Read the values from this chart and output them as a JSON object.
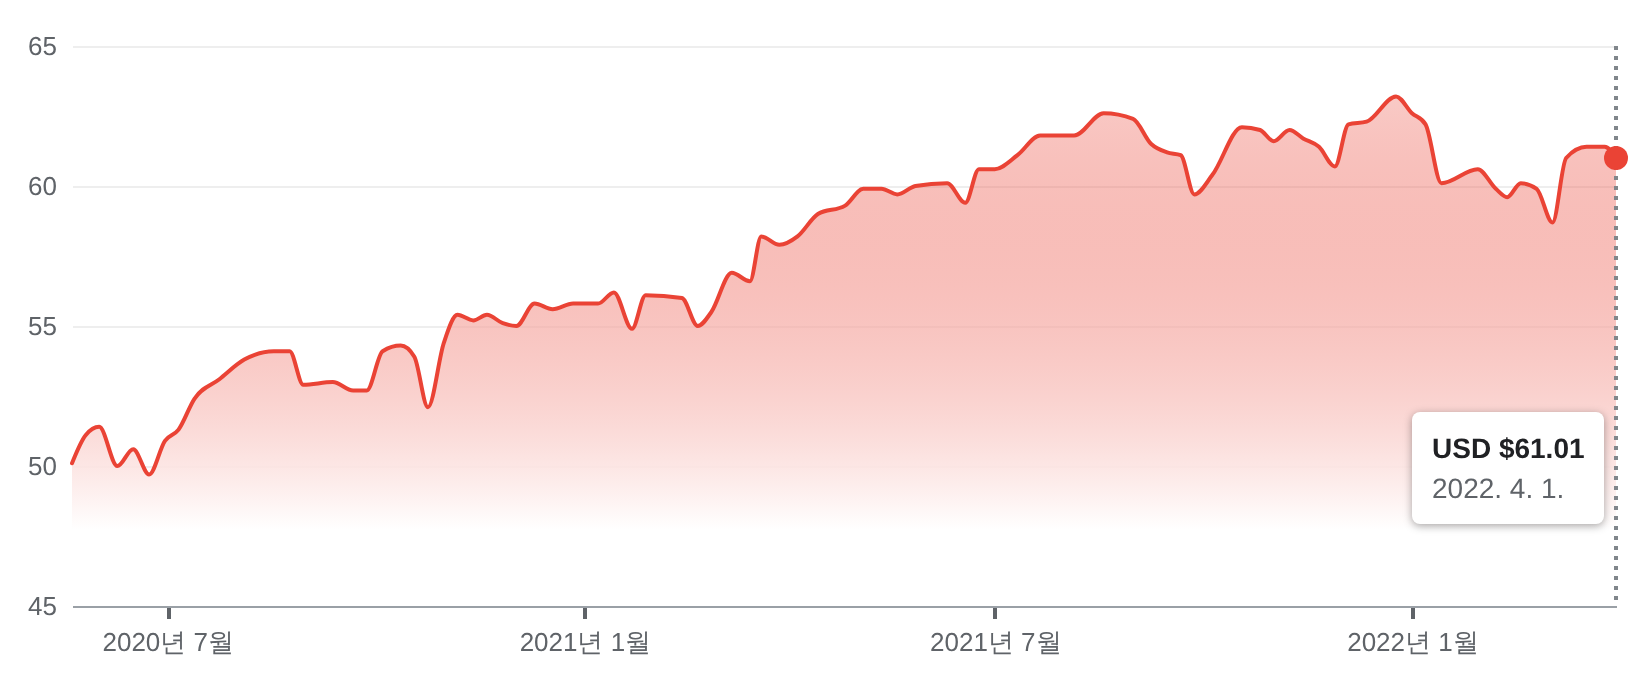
{
  "chart_data": {
    "type": "area",
    "xlim": [
      "2020-05-20",
      "2022-04-01"
    ],
    "ylim": [
      45,
      65
    ],
    "yticks": [
      45,
      50,
      55,
      60,
      65
    ],
    "xticks": [
      {
        "value": "2020-07-01",
        "label": "2020년 7월"
      },
      {
        "value": "2021-01-01",
        "label": "2021년 1월"
      },
      {
        "value": "2021-07-01",
        "label": "2021년 7월"
      },
      {
        "value": "2022-01-01",
        "label": "2022년 1월"
      }
    ],
    "grid": "y",
    "x": [
      "2020-05-20",
      "2020-05-26",
      "2020-06-01",
      "2020-06-09",
      "2020-06-16",
      "2020-06-23",
      "2020-06-30",
      "2020-07-06",
      "2020-07-13",
      "2020-07-24",
      "2020-08-04",
      "2020-08-17",
      "2020-08-24",
      "2020-08-30",
      "2020-09-12",
      "2020-09-21",
      "2020-09-27",
      "2020-10-04",
      "2020-10-12",
      "2020-10-18",
      "2020-10-24",
      "2020-10-31",
      "2020-11-06",
      "2020-11-13",
      "2020-11-19",
      "2020-11-26",
      "2020-12-02",
      "2020-12-10",
      "2020-12-18",
      "2020-12-27",
      "2021-01-07",
      "2021-01-14",
      "2021-01-22",
      "2021-01-28",
      "2021-02-13",
      "2021-02-20",
      "2021-02-26",
      "2021-03-07",
      "2021-03-15",
      "2021-03-20",
      "2021-03-28",
      "2021-04-05",
      "2021-04-14",
      "2021-04-26",
      "2021-05-04",
      "2021-05-12",
      "2021-05-19",
      "2021-05-27",
      "2021-06-10",
      "2021-06-18",
      "2021-06-24",
      "2021-07-01",
      "2021-07-11",
      "2021-07-21",
      "2021-08-05",
      "2021-08-18",
      "2021-08-31",
      "2021-09-08",
      "2021-09-15",
      "2021-09-21",
      "2021-09-27",
      "2021-10-05",
      "2021-10-18",
      "2021-10-26",
      "2021-11-01",
      "2021-11-08",
      "2021-11-14",
      "2021-11-21",
      "2021-11-28",
      "2021-12-04",
      "2021-12-12",
      "2021-12-25",
      "2022-01-01",
      "2022-01-07",
      "2022-01-14",
      "2022-01-30",
      "2022-02-07",
      "2022-02-12",
      "2022-02-18",
      "2022-02-25",
      "2022-03-04",
      "2022-03-10",
      "2022-03-19",
      "2022-03-27",
      "2022-04-01"
    ],
    "series": [
      {
        "color": "#ea4335",
        "values": [
          50.1,
          51.1,
          51.4,
          50.0,
          50.6,
          49.7,
          50.9,
          51.3,
          52.4,
          53.1,
          53.8,
          54.1,
          54.1,
          52.9,
          53.0,
          52.7,
          52.7,
          54.1,
          54.3,
          53.9,
          52.1,
          54.4,
          55.4,
          55.2,
          55.4,
          55.1,
          55.0,
          55.8,
          55.6,
          55.8,
          55.8,
          56.2,
          54.9,
          56.1,
          56.0,
          55.0,
          55.5,
          56.9,
          56.6,
          58.2,
          57.9,
          58.2,
          59.0,
          59.3,
          59.9,
          59.9,
          59.7,
          60.0,
          60.1,
          59.4,
          60.6,
          60.6,
          61.1,
          61.8,
          61.8,
          62.6,
          62.4,
          61.5,
          61.2,
          61.1,
          59.7,
          60.4,
          62.1,
          62.0,
          61.6,
          62.0,
          61.7,
          61.4,
          60.7,
          62.2,
          62.3,
          63.2,
          62.6,
          62.2,
          60.1,
          60.6,
          59.9,
          59.6,
          60.1,
          59.9,
          58.7,
          61.0,
          61.4,
          61.4,
          61.01
        ]
      }
    ],
    "ref_lines": [
      {
        "axis": "x",
        "value": "2022-04-01",
        "color": "#80868b",
        "line_style": "dotted"
      }
    ],
    "annotations": [
      "USD $61.01",
      "2022. 4. 1."
    ]
  }
}
